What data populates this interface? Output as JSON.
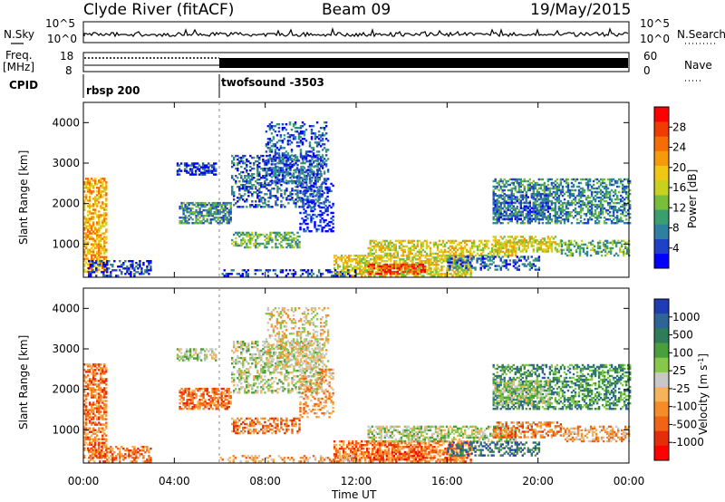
{
  "header": {
    "station": "Clyde River (fitACF)",
    "beam": "Beam 09",
    "date": "19/May/2015"
  },
  "top_panels": {
    "nsky_label": "N.Sky",
    "nsearch_label": "N.Search",
    "nsky_ticks": [
      "10^5",
      "10^0"
    ],
    "freq_label_line1": "Freq.",
    "freq_label_line2": "[MHz]",
    "freq_ticks": [
      "18",
      "8"
    ],
    "nave_label": "Nave",
    "nave_ticks": [
      "60",
      "0"
    ],
    "cpid_label": "CPID",
    "cpid_segments": [
      {
        "name": "rbsp 200",
        "start_hour": 0,
        "end_hour": 6
      },
      {
        "name": "twofsound -3503",
        "start_hour": 6,
        "end_hour": 24
      }
    ]
  },
  "chart_data": [
    {
      "type": "heatmap",
      "name": "power",
      "ylabel": "Slant Range [km]",
      "xlabel": "",
      "xlim": [
        0,
        24
      ],
      "ylim": [
        180,
        4500
      ],
      "yticks": [
        "1000",
        "2000",
        "3000",
        "4000"
      ],
      "colorbar_label": "Power [dB]",
      "colorbar_ticks": [
        "4",
        "8",
        "12",
        "16",
        "20",
        "24",
        "28"
      ],
      "colorbar_colors": [
        "#0000ff",
        "#2040c8",
        "#2e7fa0",
        "#3a9e6e",
        "#78be3a",
        "#c8d21e",
        "#f0c814",
        "#f59a0a",
        "#f56e05",
        "#f03c00",
        "#ff0000"
      ]
    },
    {
      "type": "heatmap",
      "name": "velocity",
      "ylabel": "Slant Range [km]",
      "xlabel": "Time UT",
      "xlim": [
        0,
        24
      ],
      "ylim": [
        180,
        4500
      ],
      "yticks": [
        "1000",
        "2000",
        "3000",
        "4000"
      ],
      "xticks": [
        "00:00",
        "04:00",
        "08:00",
        "12:00",
        "16:00",
        "20:00",
        "00:00"
      ],
      "colorbar_label": "Velocity [m s",
      "colorbar_label_sup": "-1",
      "colorbar_label_end": "]",
      "colorbar_ticks": [
        "1000",
        "500",
        "100",
        "25",
        "-25",
        "-100",
        "-500",
        "-1000"
      ],
      "colorbar_colors": [
        "#1e3cb4",
        "#2e6496",
        "#2e7c5a",
        "#4a9e3c",
        "#86c84a",
        "#c8c8c8",
        "#f5b45a",
        "#f58c28",
        "#f06414",
        "#e62d0a",
        "#ff0000"
      ]
    }
  ]
}
